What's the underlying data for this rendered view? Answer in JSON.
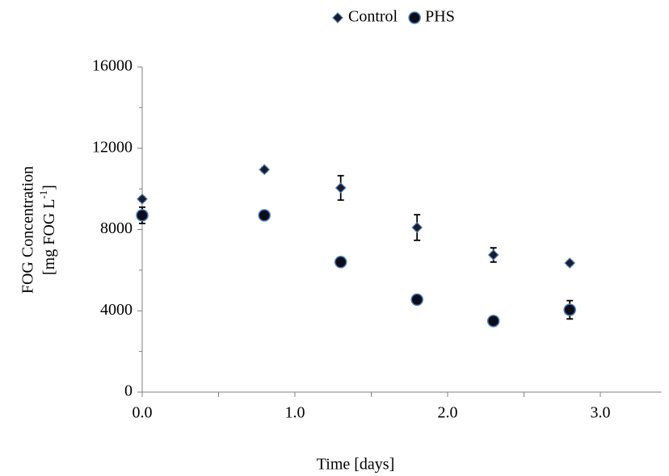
{
  "chart_data": {
    "type": "scatter",
    "xlabel": "Time [days]",
    "ylabel_line1": "FOG Concentration",
    "ylabel_line2": {
      "text": "[mg FOG L",
      "superscript": "-1",
      "suffix": "]"
    },
    "x": [
      0,
      0.8,
      1.3,
      1.8,
      2.3,
      2.8
    ],
    "series": [
      {
        "name": "Control",
        "marker": "diamond",
        "color": "#1b1b2a",
        "edge": "#4a7ebb",
        "values": [
          9500,
          10950,
          10050,
          8100,
          6750,
          6350
        ],
        "errors": [
          100,
          100,
          600,
          630,
          350,
          100
        ]
      },
      {
        "name": "PHS",
        "marker": "circle",
        "color": "#0d0d1a",
        "edge": "#4a7ebb",
        "values": [
          8700,
          8700,
          6400,
          4550,
          3500,
          4050
        ],
        "errors": [
          400,
          200,
          100,
          100,
          100,
          450
        ]
      }
    ],
    "xlim": [
      0,
      3.4
    ],
    "xticks": [
      {
        "value": 0,
        "label": "0.0"
      },
      {
        "value": 1,
        "label": "1.0"
      },
      {
        "value": 2,
        "label": "2.0"
      },
      {
        "value": 3,
        "label": "3.0"
      }
    ],
    "xminor_ticks": [
      0.5,
      1.5,
      2.5
    ],
    "ylim": [
      0,
      16000
    ],
    "yticks": [
      0,
      4000,
      8000,
      12000,
      16000
    ],
    "yminor_ticks": [
      2000,
      6000,
      10000,
      14000
    ],
    "grid": false,
    "legend": "top"
  }
}
